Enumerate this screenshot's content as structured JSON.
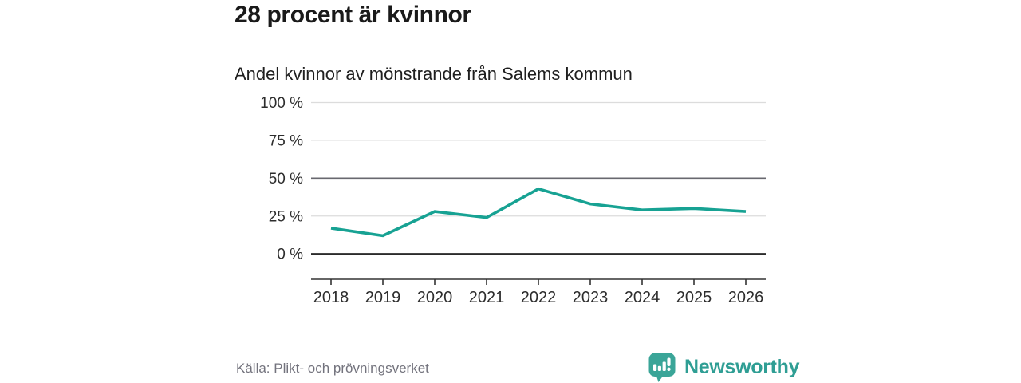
{
  "header": {
    "title": "28 procent är kvinnor",
    "subtitle": "Andel kvinnor av mönstrande från Salems kommun"
  },
  "footer": {
    "source": "Källa: Plikt- och prövningsverket",
    "brand": "Newsworthy"
  },
  "colors": {
    "line": "#17a293",
    "grid_light": "#dcdcdc",
    "grid_mid": "#68686f",
    "grid_zero": "#2b2b2b",
    "axis": "#333333",
    "tick_label": "#2d2d2d",
    "logo_icon": "#3aa598",
    "brand_text": "#2f9e94"
  },
  "chart_data": {
    "type": "line",
    "title": "28 procent är kvinnor",
    "subtitle": "Andel kvinnor av mönstrande från Salems kommun",
    "categories": [
      "2018",
      "2019",
      "2020",
      "2021",
      "2022",
      "2023",
      "2024",
      "2025",
      "2026"
    ],
    "series": [
      {
        "name": "Andel kvinnor av mönstrande",
        "values": [
          17,
          12,
          28,
          24,
          43,
          33,
          29,
          30,
          28
        ]
      }
    ],
    "unit": "%",
    "ylim": [
      0,
      100
    ],
    "yticks": [
      0,
      25,
      50,
      75,
      100
    ],
    "ytick_labels": [
      "0 %",
      "25 %",
      "50 %",
      "75 %",
      "100 %"
    ],
    "grid": true,
    "legend": false,
    "source": "Källa: Plikt- och prövningsverket"
  }
}
